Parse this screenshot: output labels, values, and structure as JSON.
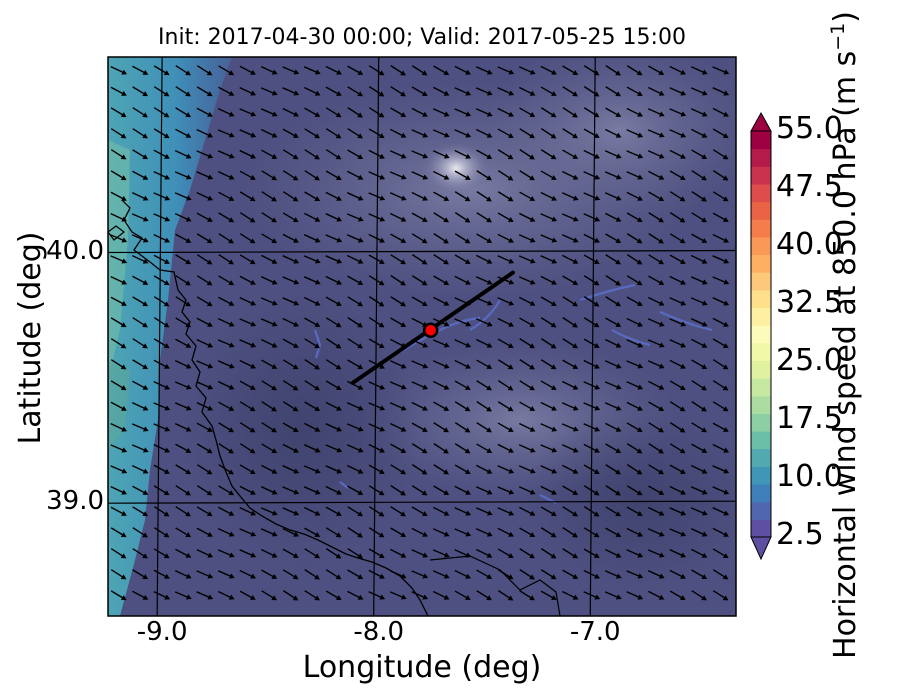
{
  "title": "Init: 2017-04-30 00:00; Valid: 2017-05-25 15:00",
  "map": {
    "extent": {
      "lon_min": -9.25,
      "lon_max": -6.35,
      "lat_min": 38.55,
      "lat_max": 40.78
    },
    "x_label": "Longitude (deg)",
    "y_label": "Latitude (deg)",
    "x_ticks": [
      {
        "value": -9.0,
        "label": "-9.0"
      },
      {
        "value": -8.0,
        "label": "-8.0"
      },
      {
        "value": -7.0,
        "label": "-7.0"
      }
    ],
    "y_ticks": [
      {
        "value": 40.0,
        "label": "40.0"
      },
      {
        "value": 39.0,
        "label": "39.0"
      }
    ],
    "gridlines": true,
    "wind_direction": "northwest (arrows pointing to south-east)",
    "transect": {
      "start": {
        "lon": -8.12,
        "lat": 39.48
      },
      "end": {
        "lon": -7.38,
        "lat": 39.92
      },
      "color": "#000000"
    },
    "marker": {
      "lon": -7.76,
      "lat": 39.69,
      "color": "#ff0000"
    }
  },
  "colorbar": {
    "label": "Horizontal wind speed at 850.0 hPa (m s$^{-1}$)",
    "label_main": "Horizontal wind speed at 850.0 hPa (m s",
    "label_sup": "−1",
    "label_close": ")",
    "min": 2.5,
    "max": 55.0,
    "step": 2.5,
    "extend": "both",
    "ticks": [
      "2.5",
      "10.0",
      "17.5",
      "25.0",
      "32.5",
      "40.0",
      "47.5",
      "55.0"
    ],
    "colors": [
      "#5e4fa2",
      "#4f67ae",
      "#3f7fb9",
      "#3f96b7",
      "#52aab0",
      "#6bbfa8",
      "#8ccfa4",
      "#acdca1",
      "#c7e8a0",
      "#e0f2a0",
      "#f1f8a8",
      "#fdfbba",
      "#feefa3",
      "#fee08b",
      "#fdc879",
      "#fdb062",
      "#fa9857",
      "#f57d4b",
      "#ea6344",
      "#dc4d4b",
      "#c9334c",
      "#b31b4a",
      "#9e0142"
    ]
  }
}
